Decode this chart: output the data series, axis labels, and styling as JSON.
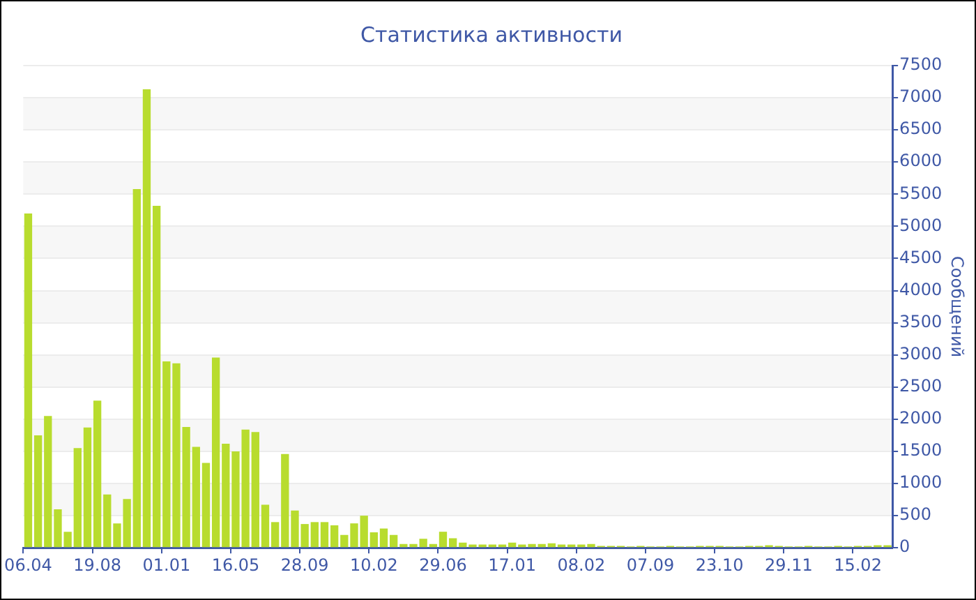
{
  "chart_data": {
    "type": "bar",
    "title": "Статистика активности",
    "ylabel": "Сообщений",
    "categories": [
      "06.04",
      null,
      null,
      null,
      null,
      null,
      null,
      "19.08",
      null,
      null,
      null,
      null,
      null,
      null,
      "01.01",
      null,
      null,
      null,
      null,
      null,
      null,
      "16.05",
      null,
      null,
      null,
      null,
      null,
      null,
      "28.09",
      null,
      null,
      null,
      null,
      null,
      null,
      "10.02",
      null,
      null,
      null,
      null,
      null,
      null,
      "29.06",
      null,
      null,
      null,
      null,
      null,
      null,
      "17.01",
      null,
      null,
      null,
      null,
      null,
      null,
      "08.02",
      null,
      null,
      null,
      null,
      null,
      null,
      "07.09",
      null,
      null,
      null,
      null,
      null,
      null,
      "23.10",
      null,
      null,
      null,
      null,
      null,
      null,
      "29.11",
      null,
      null,
      null,
      null,
      null,
      null,
      "15.02",
      null,
      null,
      null
    ],
    "values": [
      5200,
      1750,
      2050,
      600,
      250,
      1550,
      1870,
      2290,
      830,
      380,
      760,
      5580,
      7130,
      5320,
      2900,
      2870,
      1880,
      1570,
      1320,
      2960,
      1620,
      1500,
      1840,
      1800,
      670,
      400,
      1460,
      580,
      370,
      400,
      400,
      350,
      200,
      380,
      500,
      240,
      300,
      200,
      60,
      60,
      140,
      60,
      250,
      150,
      80,
      50,
      50,
      50,
      50,
      80,
      50,
      60,
      60,
      70,
      50,
      50,
      50,
      60,
      30,
      30,
      30,
      20,
      30,
      20,
      20,
      30,
      20,
      20,
      30,
      30,
      30,
      20,
      20,
      30,
      30,
      40,
      30,
      20,
      20,
      30,
      20,
      20,
      30,
      20,
      30,
      30,
      40,
      40
    ],
    "color": "#b8dc2e",
    "ylim": [
      0,
      7500
    ],
    "yticks": [
      0,
      500,
      1000,
      1500,
      2000,
      2500,
      3000,
      3500,
      4000,
      4500,
      5000,
      5500,
      6000,
      6500,
      7000,
      7500
    ],
    "grid": "y"
  }
}
